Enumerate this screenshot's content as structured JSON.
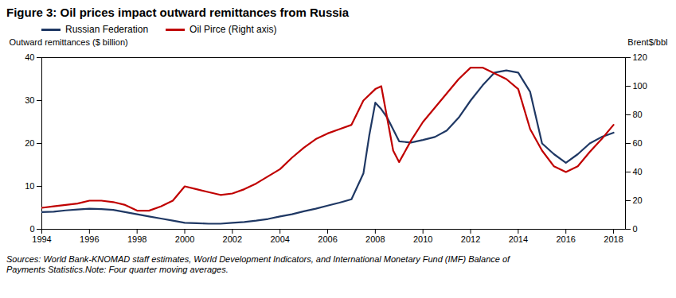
{
  "chart_data": {
    "type": "line",
    "title": "Figure 3: Oil prices impact outward remittances from Russia",
    "ylabel": "Outward remittances ($ billion)",
    "y2label": "Brent$/bbl",
    "source": "Sources: World Bank-KNOMAD staff estimates, World Development Indicators, and International Monetary Fund (IMF) Balance of\nPayments Statistics.Note: Four quarter moving averages.",
    "xlim": [
      1994,
      2018.5
    ],
    "xticks": [
      1994,
      1996,
      1998,
      2000,
      2002,
      2004,
      2006,
      2008,
      2010,
      2012,
      2014,
      2016,
      2018
    ],
    "ylim": [
      0,
      40
    ],
    "yticks": [
      0,
      10,
      20,
      30,
      40
    ],
    "y2lim": [
      0,
      120
    ],
    "y2ticks": [
      0,
      20,
      40,
      60,
      80,
      100,
      120
    ],
    "grid": false,
    "legend": "upper left",
    "series": [
      {
        "name": "Russian Federation",
        "color": "#1F3864",
        "axis": "y",
        "x": [
          1994,
          1994.5,
          1995,
          1995.5,
          1996,
          1996.5,
          1997,
          1997.5,
          1998,
          1998.5,
          1999,
          1999.5,
          2000,
          2000.5,
          2001,
          2001.5,
          2002,
          2002.5,
          2003,
          2003.5,
          2004,
          2004.5,
          2005,
          2005.5,
          2006,
          2006.5,
          2007,
          2007.5,
          2007.75,
          2008,
          2008.25,
          2008.5,
          2009,
          2009.5,
          2010,
          2010.5,
          2011,
          2011.5,
          2012,
          2012.5,
          2013,
          2013.5,
          2014,
          2014.5,
          2015,
          2015.5,
          2016,
          2016.5,
          2017,
          2017.5,
          2018
        ],
        "values": [
          4.0,
          4.1,
          4.4,
          4.6,
          4.8,
          4.7,
          4.5,
          4.0,
          3.5,
          3.0,
          2.5,
          2.0,
          1.5,
          1.4,
          1.3,
          1.3,
          1.5,
          1.7,
          2.0,
          2.4,
          3.0,
          3.5,
          4.2,
          4.8,
          5.5,
          6.2,
          7.0,
          13.0,
          22.0,
          29.5,
          28.0,
          26.0,
          20.5,
          20.2,
          20.8,
          21.5,
          23.0,
          26.0,
          30.0,
          33.5,
          36.5,
          37.0,
          36.5,
          32.0,
          20.0,
          17.5,
          15.5,
          17.5,
          20.0,
          21.5,
          22.5
        ]
      },
      {
        "name": "Oil Pirce (Right axis)",
        "color": "#C00000",
        "axis": "y2",
        "x": [
          1994,
          1994.5,
          1995,
          1995.5,
          1996,
          1996.5,
          1997,
          1997.5,
          1998,
          1998.5,
          1999,
          1999.5,
          2000,
          2000.5,
          2001,
          2001.5,
          2002,
          2002.5,
          2003,
          2003.5,
          2004,
          2004.5,
          2005,
          2005.5,
          2006,
          2006.5,
          2007,
          2007.5,
          2008,
          2008.25,
          2008.75,
          2009,
          2009.5,
          2010,
          2010.5,
          2011,
          2011.5,
          2012,
          2012.5,
          2013,
          2013.5,
          2014,
          2014.5,
          2015,
          2015.5,
          2016,
          2016.5,
          2017,
          2017.5,
          2018
        ],
        "values": [
          15,
          16,
          17,
          18,
          20,
          20,
          19,
          17,
          13,
          13,
          16,
          20,
          30,
          28,
          26,
          24,
          25,
          28,
          32,
          37,
          42,
          50,
          57,
          63,
          67,
          70,
          73,
          90,
          98,
          100,
          55,
          47,
          62,
          75,
          85,
          95,
          105,
          113,
          113,
          109,
          105,
          98,
          70,
          55,
          44,
          40,
          44,
          54,
          63,
          73
        ]
      }
    ]
  }
}
